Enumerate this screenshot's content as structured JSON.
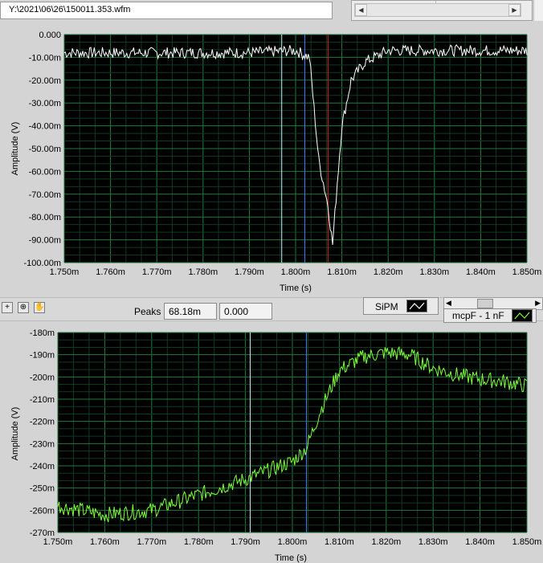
{
  "file_path": "Y:\\2021\\06\\26\\150011.353.wfm",
  "top_scroll": {
    "left_arrow": "◀",
    "right_arrow": "▶"
  },
  "graph1": {
    "ylabel": "Amplitude (V)",
    "xlabel": "Time (s)",
    "y_ticks": [
      "0.000",
      "-10.00m",
      "-20.00m",
      "-30.00m",
      "-40.00m",
      "-50.00m",
      "-60.00m",
      "-70.00m",
      "-80.00m",
      "-90.00m",
      "-100.00m"
    ],
    "x_ticks": [
      "1.750m",
      "1.760m",
      "1.770m",
      "1.780m",
      "1.790m",
      "1.800m",
      "1.810m",
      "1.820m",
      "1.830m",
      "1.840m",
      "1.850m"
    ],
    "trace_color": "#ffffff",
    "cursor_colors": [
      "#cfeff8",
      "#3d7bff",
      "#e02020"
    ]
  },
  "toolbar": {
    "peaks_label": "Peaks",
    "peaks_value_1": "68.18m",
    "peaks_value_2": "0.000",
    "legend_sipm": "SiPM",
    "legend_mcp": "mcpF - 1 nF",
    "slider_left": "◀",
    "slider_right": "▶"
  },
  "graph2": {
    "ylabel": "Amplitude (V)",
    "xlabel": "Time (s)",
    "y_ticks": [
      "-180m",
      "-190m",
      "-200m",
      "-210m",
      "-220m",
      "-230m",
      "-240m",
      "-250m",
      "-260m",
      "-270m"
    ],
    "x_ticks": [
      "1.750m",
      "1.760m",
      "1.770m",
      "1.780m",
      "1.790m",
      "1.800m",
      "1.810m",
      "1.820m",
      "1.830m",
      "1.840m",
      "1.850m"
    ],
    "trace_color": "#7dff3c",
    "cursor_colors": [
      "#cfeff8",
      "#3d7bff"
    ]
  },
  "chart_data": [
    {
      "type": "line",
      "xlabel": "Time (s)",
      "ylabel": "Amplitude (V)",
      "xlim": [
        0.00175,
        0.00185
      ],
      "ylim": [
        -0.1,
        0.0
      ],
      "grid": true,
      "cursors_x": [
        0.001797,
        0.001802,
        0.001807
      ],
      "series": [
        {
          "x": [
            0.00175,
            0.00176,
            0.00177,
            0.00178,
            0.00179,
            0.0018,
            0.001803,
            0.001805,
            0.001806,
            0.001807,
            0.001808,
            0.001809,
            0.00181,
            0.001812,
            0.001815,
            0.00182,
            0.00183,
            0.00184,
            0.00185
          ],
          "y": [
            -0.008,
            -0.008,
            -0.008,
            -0.008,
            -0.008,
            -0.007,
            -0.01,
            -0.055,
            -0.065,
            -0.075,
            -0.092,
            -0.065,
            -0.04,
            -0.02,
            -0.012,
            -0.007,
            -0.007,
            -0.007,
            -0.007
          ]
        }
      ]
    },
    {
      "type": "line",
      "xlabel": "Time (s)",
      "ylabel": "Amplitude (V)",
      "xlim": [
        0.00175,
        0.00185
      ],
      "ylim": [
        -0.27,
        -0.18
      ],
      "grid": true,
      "cursors_x": [
        0.001791,
        0.001803
      ],
      "series": [
        {
          "x": [
            0.00175,
            0.00176,
            0.00177,
            0.00178,
            0.00179,
            0.0018,
            0.001803,
            0.001806,
            0.00181,
            0.001815,
            0.00182,
            0.001825,
            0.00183,
            0.001835,
            0.00184,
            0.001845,
            0.00185
          ],
          "y": [
            -0.258,
            -0.262,
            -0.26,
            -0.253,
            -0.246,
            -0.238,
            -0.232,
            -0.215,
            -0.197,
            -0.191,
            -0.189,
            -0.19,
            -0.196,
            -0.199,
            -0.201,
            -0.202,
            -0.204
          ]
        }
      ]
    }
  ]
}
